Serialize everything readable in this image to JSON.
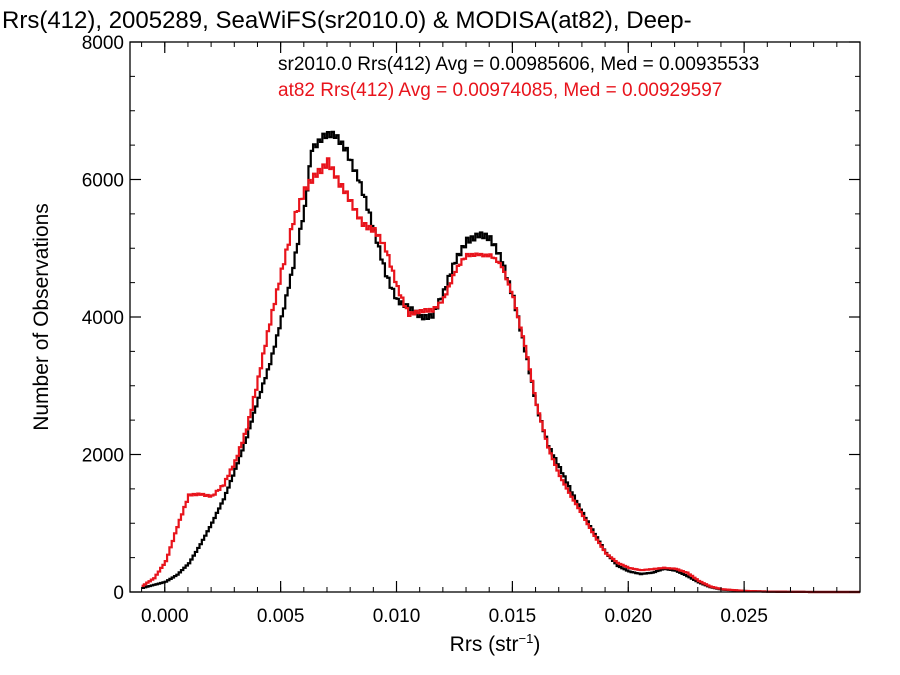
{
  "chart_data": {
    "type": "line",
    "step": true,
    "title": "Rrs(412), 2005289, SeaWiFS(sr2010.0) & MODISA(at82), Deep-",
    "xlabel": "Rrs (str",
    "xlabel_sup": "−1",
    "xlabel_tail": ")",
    "ylabel": "Number of Observations",
    "xlim": [
      -0.0015,
      0.03
    ],
    "ylim": [
      0,
      8000
    ],
    "x_ticks": [
      0.0,
      0.005,
      0.01,
      0.015,
      0.02,
      0.025
    ],
    "x_tick_labels": [
      "0.000",
      "0.005",
      "0.010",
      "0.015",
      "0.020",
      "0.025"
    ],
    "y_ticks": [
      0,
      2000,
      4000,
      6000,
      8000
    ],
    "y_tick_labels": [
      "0",
      "2000",
      "4000",
      "6000",
      "8000"
    ],
    "legend": [
      {
        "text": "sr2010.0 Rrs(412) Avg = 0.00985606, Med = 0.00935533",
        "color": "#000000"
      },
      {
        "text": "at82 Rrs(412) Avg = 0.00974085, Med = 0.00929597",
        "color": "#e8141c"
      }
    ],
    "series": [
      {
        "color": "#000000",
        "points": [
          [
            -0.001,
            60
          ],
          [
            0.0,
            150
          ],
          [
            0.0005,
            250
          ],
          [
            0.001,
            420
          ],
          [
            0.0015,
            700
          ],
          [
            0.002,
            1000
          ],
          [
            0.0025,
            1350
          ],
          [
            0.003,
            1800
          ],
          [
            0.0035,
            2250
          ],
          [
            0.004,
            2800
          ],
          [
            0.0045,
            3350
          ],
          [
            0.005,
            4000
          ],
          [
            0.0055,
            4700
          ],
          [
            0.006,
            5600
          ],
          [
            0.0063,
            6500
          ],
          [
            0.0068,
            6620
          ],
          [
            0.0073,
            6600
          ],
          [
            0.0078,
            6450
          ],
          [
            0.0083,
            6050
          ],
          [
            0.009,
            5200
          ],
          [
            0.0095,
            4650
          ],
          [
            0.01,
            4250
          ],
          [
            0.0105,
            4100
          ],
          [
            0.011,
            4000
          ],
          [
            0.0115,
            4050
          ],
          [
            0.012,
            4350
          ],
          [
            0.0125,
            4800
          ],
          [
            0.013,
            5150
          ],
          [
            0.0135,
            5200
          ],
          [
            0.014,
            5100
          ],
          [
            0.0145,
            4850
          ],
          [
            0.015,
            4300
          ],
          [
            0.0155,
            3500
          ],
          [
            0.016,
            2700
          ],
          [
            0.0165,
            2150
          ],
          [
            0.017,
            1800
          ],
          [
            0.0175,
            1450
          ],
          [
            0.018,
            1150
          ],
          [
            0.0185,
            850
          ],
          [
            0.019,
            560
          ],
          [
            0.0195,
            380
          ],
          [
            0.02,
            300
          ],
          [
            0.0205,
            260
          ],
          [
            0.021,
            280
          ],
          [
            0.0215,
            340
          ],
          [
            0.022,
            310
          ],
          [
            0.0225,
            230
          ],
          [
            0.023,
            140
          ],
          [
            0.0235,
            70
          ],
          [
            0.024,
            35
          ],
          [
            0.025,
            15
          ],
          [
            0.026,
            5
          ],
          [
            0.028,
            0
          ],
          [
            0.0299,
            0
          ]
        ]
      },
      {
        "color": "#e8141c",
        "points": [
          [
            -0.001,
            90
          ],
          [
            -0.0005,
            200
          ],
          [
            0.0,
            450
          ],
          [
            0.0005,
            950
          ],
          [
            0.001,
            1400
          ],
          [
            0.0015,
            1430
          ],
          [
            0.002,
            1400
          ],
          [
            0.0025,
            1550
          ],
          [
            0.003,
            1900
          ],
          [
            0.0035,
            2400
          ],
          [
            0.004,
            3100
          ],
          [
            0.0045,
            3900
          ],
          [
            0.005,
            4700
          ],
          [
            0.0055,
            5400
          ],
          [
            0.006,
            5800
          ],
          [
            0.0065,
            6100
          ],
          [
            0.007,
            6300
          ],
          [
            0.0075,
            5900
          ],
          [
            0.008,
            5650
          ],
          [
            0.0085,
            5400
          ],
          [
            0.009,
            5250
          ],
          [
            0.0095,
            4950
          ],
          [
            0.01,
            4450
          ],
          [
            0.0105,
            4050
          ],
          [
            0.011,
            4050
          ],
          [
            0.0115,
            4100
          ],
          [
            0.012,
            4300
          ],
          [
            0.0125,
            4650
          ],
          [
            0.013,
            4880
          ],
          [
            0.0135,
            4950
          ],
          [
            0.014,
            4900
          ],
          [
            0.0145,
            4700
          ],
          [
            0.015,
            4300
          ],
          [
            0.0155,
            3600
          ],
          [
            0.016,
            2700
          ],
          [
            0.0165,
            2100
          ],
          [
            0.017,
            1700
          ],
          [
            0.0175,
            1380
          ],
          [
            0.018,
            1100
          ],
          [
            0.0185,
            820
          ],
          [
            0.019,
            560
          ],
          [
            0.0195,
            420
          ],
          [
            0.02,
            350
          ],
          [
            0.0205,
            320
          ],
          [
            0.021,
            330
          ],
          [
            0.0215,
            350
          ],
          [
            0.022,
            340
          ],
          [
            0.0225,
            280
          ],
          [
            0.023,
            160
          ],
          [
            0.0235,
            80
          ],
          [
            0.024,
            40
          ],
          [
            0.025,
            15
          ],
          [
            0.026,
            5
          ],
          [
            0.028,
            0
          ],
          [
            0.0299,
            0
          ]
        ]
      }
    ]
  }
}
